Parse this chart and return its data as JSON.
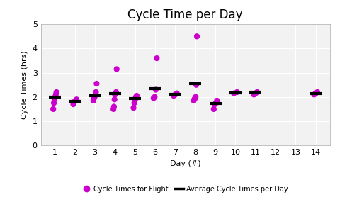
{
  "title": "Cycle Time per Day",
  "xlabel": "Day (#)",
  "ylabel": "Cycle Times (hrs)",
  "xlim": [
    0.3,
    14.7
  ],
  "ylim": [
    0,
    5
  ],
  "yticks": [
    0,
    1,
    2,
    3,
    4,
    5
  ],
  "xticks": [
    1,
    2,
    3,
    4,
    5,
    6,
    7,
    8,
    9,
    10,
    11,
    12,
    13,
    14
  ],
  "dot_color": "#CC00CC",
  "avg_color": "#000000",
  "scatter_data": {
    "1": [
      1.5,
      1.75,
      1.9,
      2.0,
      2.1,
      2.2
    ],
    "2": [
      1.7,
      1.8,
      1.85,
      1.9
    ],
    "3": [
      1.85,
      1.95,
      2.0,
      2.1,
      2.2,
      2.55
    ],
    "4": [
      1.5,
      1.6,
      1.9,
      2.1,
      2.15,
      2.2,
      3.15
    ],
    "5": [
      1.55,
      1.75,
      1.9,
      2.0,
      2.05
    ],
    "6": [
      1.95,
      2.0,
      2.3,
      3.6
    ],
    "7": [
      2.05,
      2.1,
      2.15
    ],
    "8": [
      1.85,
      1.9,
      1.95,
      2.0,
      2.5,
      4.5
    ],
    "9": [
      1.5,
      1.7,
      1.75,
      1.85
    ],
    "10": [
      2.15,
      2.2
    ],
    "11": [
      2.1,
      2.15,
      2.2
    ],
    "14": [
      2.1,
      2.15,
      2.2
    ]
  },
  "avg_data": {
    "1": 2.0,
    "2": 1.82,
    "3": 2.05,
    "4": 2.15,
    "5": 1.95,
    "6": 2.35,
    "7": 2.1,
    "8": 2.55,
    "9": 1.72,
    "10": 2.18,
    "11": 2.2,
    "14": 2.15
  },
  "avg_bar_width": 0.3,
  "dot_size": 35,
  "background_color": "#ffffff",
  "plot_bg_color": "#f2f2f2",
  "grid_color": "#ffffff",
  "title_fontsize": 12,
  "axis_fontsize": 8,
  "tick_fontsize": 8
}
